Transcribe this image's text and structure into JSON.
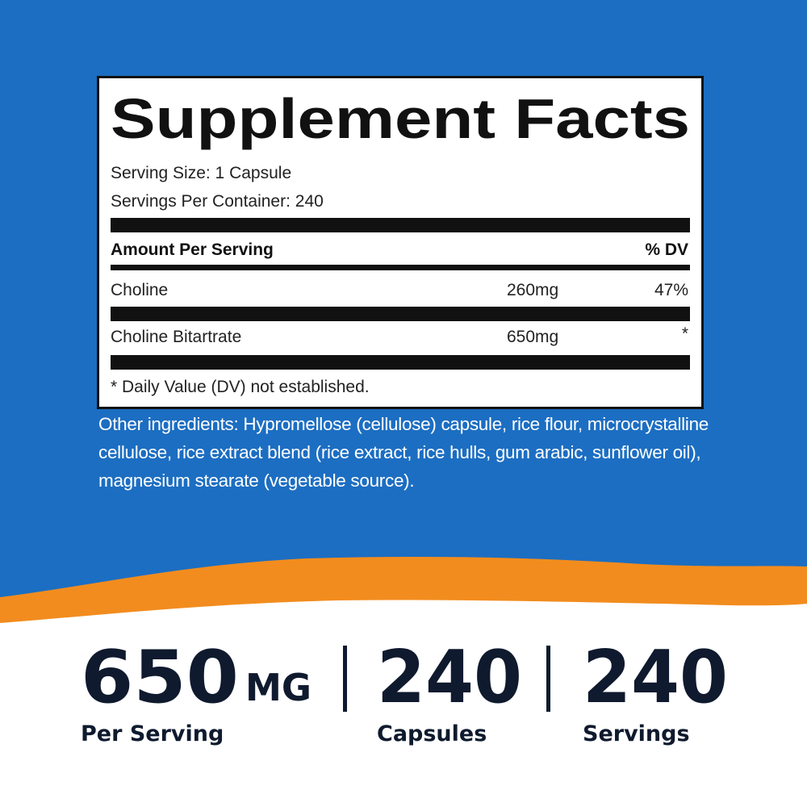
{
  "supplement_facts": {
    "title": "Supplement Facts",
    "serving_size": "Serving Size: 1 Capsule",
    "servings_per_container": "Servings Per Container: 240",
    "header": {
      "amount": "Amount Per Serving",
      "dv": "% DV"
    },
    "rows": [
      {
        "name": "Choline",
        "amount": "260mg",
        "dv": "47%"
      },
      {
        "name": "Choline Bitartrate",
        "amount": "650mg",
        "dv": "*"
      }
    ],
    "footnote": "* Daily Value (DV) not established."
  },
  "other_ingredients": "Other ingredients: Hypromellose (cellulose) capsule, rice flour, microcrystalline cellulose, rice extract blend (rice extract, rice hulls, gum arabic, sunflower oil), magnesium stearate (vegetable source).",
  "stats": [
    {
      "value": "650",
      "unit": "MG",
      "label": "Per Serving"
    },
    {
      "value": "240",
      "label": "Capsules"
    },
    {
      "value": "240",
      "label": "Servings"
    }
  ]
}
